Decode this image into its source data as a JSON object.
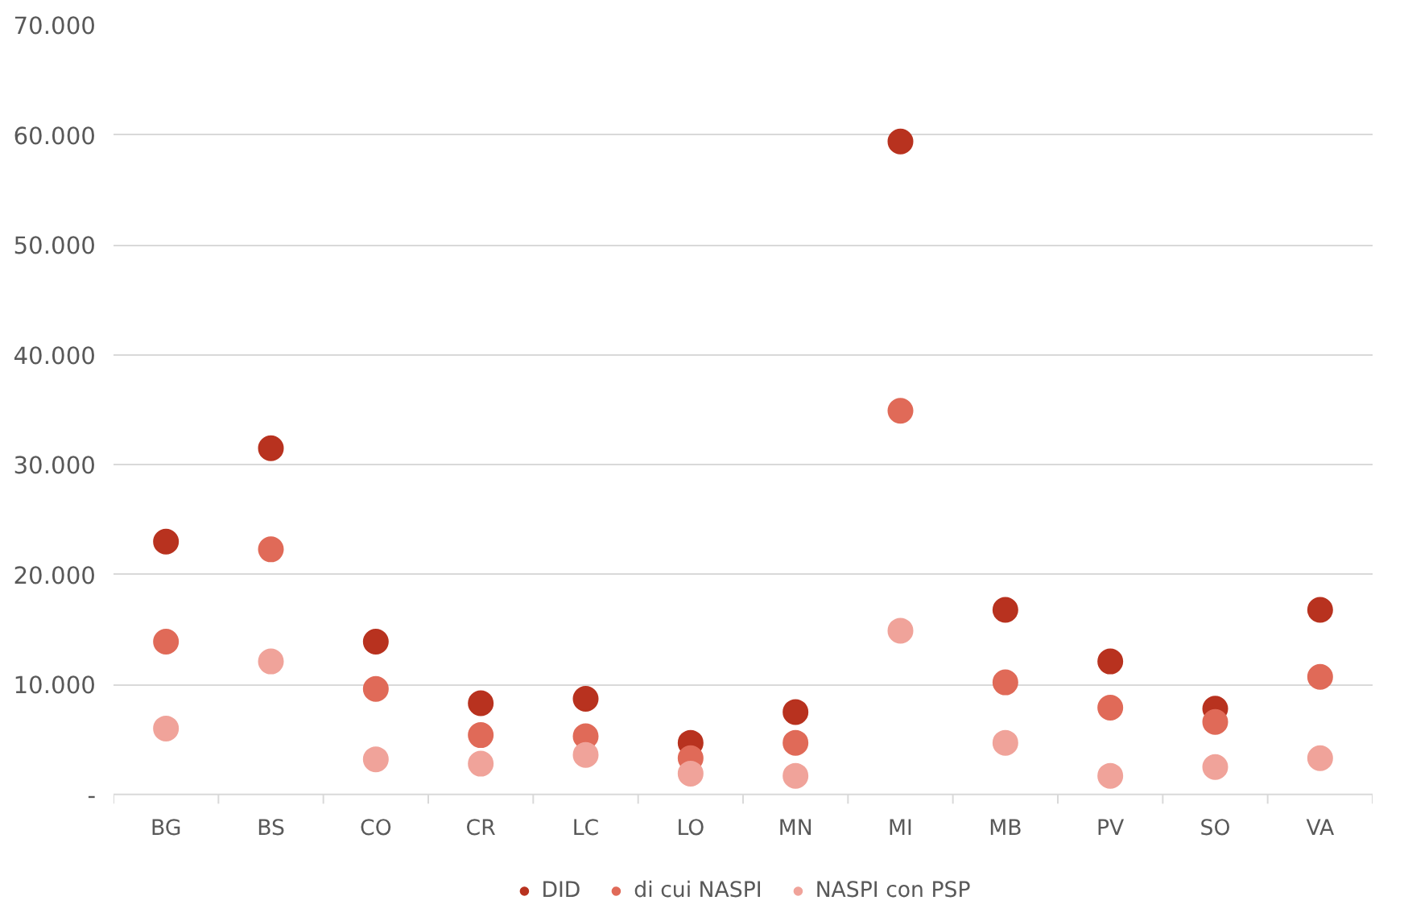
{
  "chart_data": {
    "type": "scatter",
    "categories": [
      "BG",
      "BS",
      "CO",
      "CR",
      "LC",
      "LO",
      "MN",
      "MI",
      "MB",
      "PV",
      "SO",
      "VA"
    ],
    "series": [
      {
        "name": "DID",
        "color": "#b8321f",
        "values": [
          23000,
          31500,
          13900,
          8300,
          8700,
          4700,
          7500,
          59400,
          16800,
          12100,
          7800,
          16800
        ]
      },
      {
        "name": "di cui NASPI",
        "color": "#e06a58",
        "values": [
          13900,
          22300,
          9600,
          5400,
          5300,
          3300,
          4700,
          34900,
          10200,
          7900,
          6600,
          10700
        ]
      },
      {
        "name": "NASPI con PSP",
        "color": "#f0a39a",
        "values": [
          6000,
          12100,
          3200,
          2800,
          3600,
          1900,
          1700,
          14900,
          4700,
          1700,
          2500,
          3300
        ]
      }
    ],
    "ylim": [
      0,
      70000
    ],
    "yticks": [
      {
        "value": 0,
        "label": "-"
      },
      {
        "value": 10000,
        "label": "10.000"
      },
      {
        "value": 20000,
        "label": "20.000"
      },
      {
        "value": 30000,
        "label": "30.000"
      },
      {
        "value": 40000,
        "label": "40.000"
      },
      {
        "value": 50000,
        "label": "50.000"
      },
      {
        "value": 60000,
        "label": "60.000"
      },
      {
        "value": 70000,
        "label": "70.000"
      }
    ],
    "grid": "y",
    "legend": "bottom",
    "marker": "circle"
  }
}
